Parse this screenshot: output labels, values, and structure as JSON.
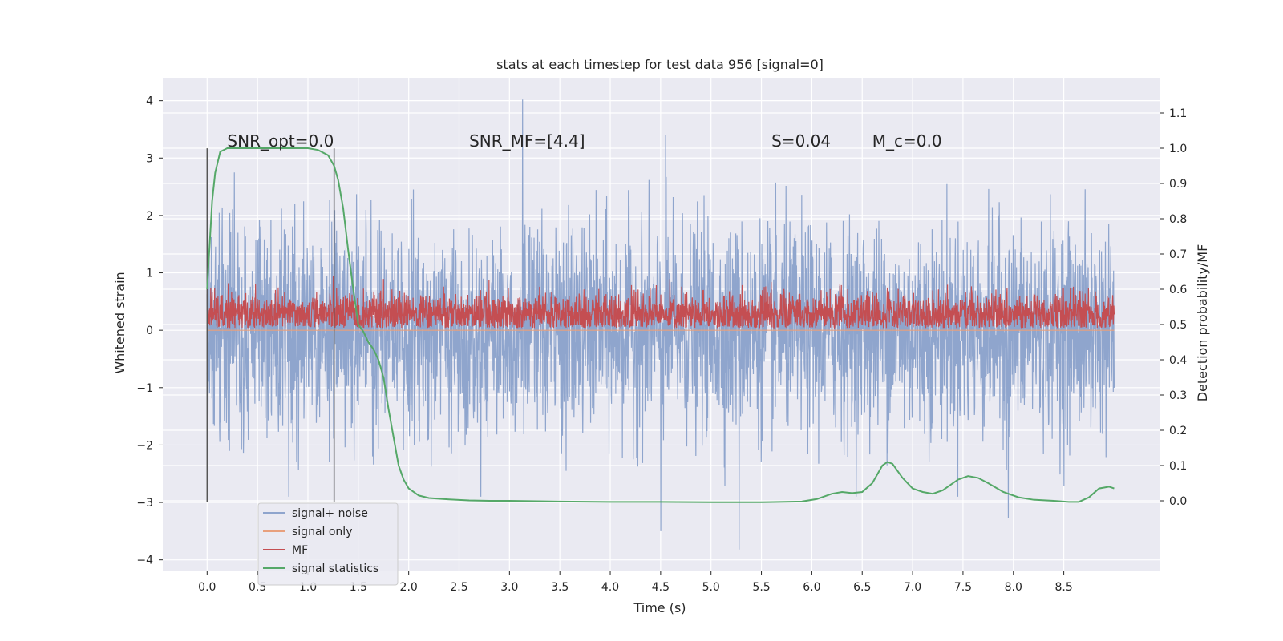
{
  "chart_data": {
    "type": "line",
    "title": "stats at each timestep for test data 956 [signal=0]",
    "xlabel": "Time (s)",
    "ylabel": "Whitened strain",
    "ylabel_right": "Detection probability/MF",
    "xlim": [
      -0.44,
      9.45
    ],
    "ylim": [
      -4.2,
      4.4
    ],
    "ylim_right": [
      -0.2,
      1.2
    ],
    "x_ticks": [
      "0.0",
      "0.5",
      "1.0",
      "1.5",
      "2.0",
      "2.5",
      "3.0",
      "3.5",
      "4.0",
      "4.5",
      "5.0",
      "5.5",
      "6.0",
      "6.5",
      "7.0",
      "7.5",
      "8.0",
      "8.5"
    ],
    "y_ticks": [
      "−4",
      "−3",
      "−2",
      "−1",
      "0",
      "1",
      "2",
      "3",
      "4"
    ],
    "y_ticks_right": [
      "0.0",
      "0.1",
      "0.2",
      "0.3",
      "0.4",
      "0.5",
      "0.6",
      "0.7",
      "0.8",
      "0.9",
      "1.0",
      "1.1"
    ],
    "grid": true,
    "legend_position": "lower-left",
    "annotations": [
      {
        "label": "SNR_opt=0.0",
        "x": 0.2,
        "y": 3.2
      },
      {
        "label": "SNR_MF=[4.4]",
        "x": 2.6,
        "y": 3.2
      },
      {
        "label": "S=0.04",
        "x": 5.6,
        "y": 3.2
      },
      {
        "label": "M_c=0.0",
        "x": 6.6,
        "y": 3.2
      }
    ],
    "vertical_markers": [
      {
        "x": 0.0,
        "y_range": [
          -3.0,
          3.17
        ]
      },
      {
        "x": 1.26,
        "y_range": [
          -3.0,
          3.17
        ]
      }
    ],
    "series": [
      {
        "name": "signal+ noise",
        "color": "#8fa5cd",
        "axis": "left",
        "note": "noisy whitened strain on [0, 9], ~N(0, 0.9) with spikes",
        "x_range": [
          0.0,
          9.0
        ],
        "mean": 0.0,
        "std": 0.9,
        "extremes": [
          {
            "x": 3.13,
            "y": 4.02
          },
          {
            "x": 4.55,
            "y": 3.4
          },
          {
            "x": 0.27,
            "y": 2.75
          },
          {
            "x": 4.5,
            "y": -3.5
          },
          {
            "x": 5.28,
            "y": -3.82
          },
          {
            "x": 7.95,
            "y": -3.27
          }
        ]
      },
      {
        "name": "signal only",
        "color": "#e8a07d",
        "axis": "left",
        "values": "flat at 0.0 (no signal)"
      },
      {
        "name": "MF",
        "color": "#c44e52",
        "axis": "right",
        "x_range": [
          0.0,
          9.0
        ],
        "mean": 0.53,
        "band": [
          0.49,
          0.6
        ]
      },
      {
        "name": "signal statistics",
        "color": "#55a868",
        "axis": "right",
        "x": [
          0.0,
          0.05,
          0.08,
          0.13,
          0.2,
          0.3,
          0.5,
          0.7,
          0.9,
          1.0,
          1.1,
          1.2,
          1.26,
          1.3,
          1.35,
          1.4,
          1.45,
          1.5,
          1.55,
          1.6,
          1.65,
          1.7,
          1.75,
          1.8,
          1.85,
          1.9,
          1.95,
          2.0,
          2.1,
          2.2,
          2.4,
          2.6,
          2.8,
          3.0,
          3.5,
          4.0,
          4.5,
          5.0,
          5.5,
          5.9,
          6.05,
          6.2,
          6.3,
          6.4,
          6.5,
          6.6,
          6.65,
          6.7,
          6.75,
          6.8,
          6.9,
          7.0,
          7.1,
          7.2,
          7.3,
          7.45,
          7.55,
          7.65,
          7.75,
          7.9,
          8.05,
          8.2,
          8.4,
          8.55,
          8.65,
          8.75,
          8.85,
          8.95,
          9.0
        ],
        "values": [
          0.6,
          0.85,
          0.93,
          0.99,
          1.0,
          1.0,
          1.0,
          1.0,
          1.0,
          1.0,
          0.995,
          0.98,
          0.95,
          0.91,
          0.83,
          0.71,
          0.6,
          0.5,
          0.48,
          0.45,
          0.43,
          0.4,
          0.35,
          0.26,
          0.18,
          0.1,
          0.06,
          0.035,
          0.015,
          0.008,
          0.004,
          0.001,
          0.0,
          0.0,
          -0.002,
          -0.003,
          -0.003,
          -0.004,
          -0.004,
          -0.002,
          0.005,
          0.02,
          0.025,
          0.022,
          0.025,
          0.05,
          0.075,
          0.1,
          0.11,
          0.105,
          0.065,
          0.035,
          0.025,
          0.02,
          0.03,
          0.06,
          0.07,
          0.065,
          0.05,
          0.025,
          0.01,
          0.003,
          0.0,
          -0.003,
          -0.003,
          0.01,
          0.035,
          0.04,
          0.035
        ]
      }
    ]
  }
}
